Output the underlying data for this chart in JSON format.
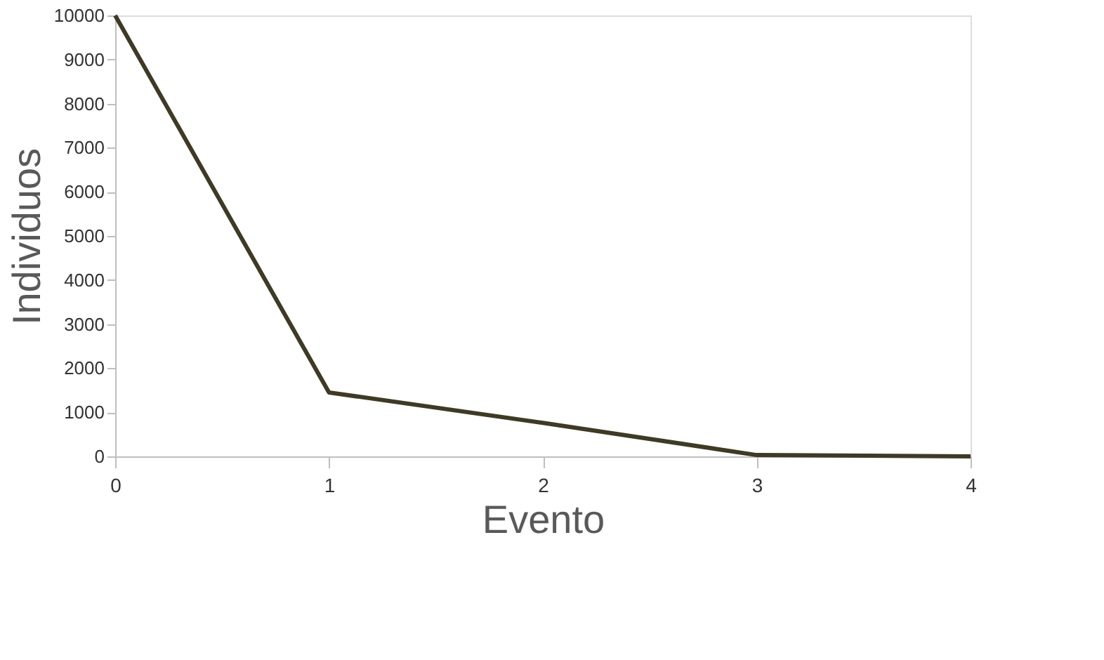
{
  "chart_data": {
    "type": "line",
    "xlabel": "Evento",
    "ylabel": "Individuos",
    "x": [
      0,
      1,
      2,
      3,
      4
    ],
    "series": [
      {
        "color": "#3f3a26",
        "values": [
          10000,
          1450,
          760,
          30,
          0
        ]
      }
    ],
    "xlim": [
      0,
      4
    ],
    "xticks": [
      0,
      1,
      2,
      3,
      4
    ],
    "ylim": [
      0,
      10000
    ],
    "yticks": [
      0,
      1000,
      2000,
      3000,
      4000,
      5000,
      6000,
      7000,
      8000,
      9000,
      10000
    ],
    "grid": false,
    "legend": false,
    "marker": "none",
    "line_style": "solid"
  }
}
